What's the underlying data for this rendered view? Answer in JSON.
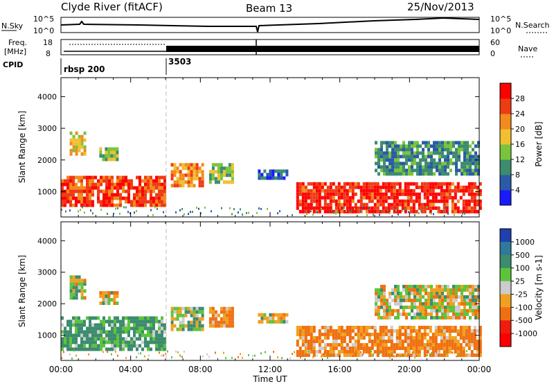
{
  "header": {
    "station": "Clyde River (fitACF)",
    "beam": "Beam 13",
    "date": "25/Nov/2013"
  },
  "meta_panels": {
    "nsky_label": "N.Sky",
    "nsearch_label": "N.Search",
    "freq_label_line1": "Freq.",
    "freq_label_line2": "[MHz]",
    "nave_label": "Nave",
    "cpid_label": "CPID",
    "nsky_ticks": [
      "10^5",
      "10^0"
    ],
    "nsearch_ticks": [
      "10^5",
      "10^0"
    ],
    "freq_ticks": [
      "18",
      "8"
    ],
    "nave_ticks": [
      "60",
      "0"
    ],
    "cpid_segments": [
      {
        "label": "rbsp 200",
        "start_hour": 0
      },
      {
        "label": "3503",
        "start_hour": 6
      }
    ]
  },
  "chart_data": [
    {
      "type": "heatmap",
      "title": "",
      "xlabel": "Time UT",
      "ylabel": "Slant Range [km]",
      "xlim": [
        0,
        24
      ],
      "ylim": [
        200,
        4600
      ],
      "x_ticks": [
        "00:00",
        "04:00",
        "08:00",
        "12:00",
        "16:00",
        "20:00",
        "00:00"
      ],
      "y_ticks": [
        "1000",
        "2000",
        "3000",
        "4000"
      ],
      "colorbar": {
        "label": "Power [dB]",
        "ticks": [
          "4",
          "8",
          "12",
          "16",
          "20",
          "24",
          "28"
        ],
        "colors": [
          "#1a1aff",
          "#2a5aa8",
          "#3c8c6e",
          "#7ac43c",
          "#f0c030",
          "#f28a1c",
          "#ef3b14",
          "#ff0000"
        ]
      },
      "regions": [
        {
          "t0": 0.0,
          "t1": 5.9,
          "r0": 600,
          "r1": 1500,
          "value": 26
        },
        {
          "t0": 0.5,
          "t1": 1.3,
          "r0": 2200,
          "r1": 2900,
          "value": 18
        },
        {
          "t0": 2.2,
          "t1": 3.2,
          "r0": 2000,
          "r1": 2400,
          "value": 14
        },
        {
          "t0": 6.3,
          "t1": 8.1,
          "r0": 1200,
          "r1": 1900,
          "value": 22
        },
        {
          "t0": 8.5,
          "t1": 9.8,
          "r0": 1300,
          "r1": 1900,
          "value": 14
        },
        {
          "t0": 11.3,
          "t1": 13.0,
          "r0": 1400,
          "r1": 1700,
          "value": 6
        },
        {
          "t0": 13.5,
          "t1": 24.0,
          "r0": 400,
          "r1": 1300,
          "value": 28
        },
        {
          "t0": 18.0,
          "t1": 24.0,
          "r0": 1600,
          "r1": 2600,
          "value": 10
        }
      ]
    },
    {
      "type": "heatmap",
      "title": "",
      "xlabel": "Time UT",
      "ylabel": "Slant Range [km]",
      "xlim": [
        0,
        24
      ],
      "ylim": [
        200,
        4600
      ],
      "x_ticks": [
        "00:00",
        "04:00",
        "08:00",
        "12:00",
        "16:00",
        "20:00",
        "00:00"
      ],
      "y_ticks": [
        "1000",
        "2000",
        "3000",
        "4000"
      ],
      "colorbar": {
        "label": "Velocity [m s-1]",
        "ticks": [
          "1000",
          "500",
          "100",
          "25",
          "-25",
          "-100",
          "-500",
          "-1000"
        ],
        "colors": [
          "#2040b0",
          "#2f7a9a",
          "#3c8c6e",
          "#5cc43a",
          "#cccccc",
          "#f0a020",
          "#f07010",
          "#ef1c10",
          "#ff0000"
        ]
      },
      "regions": [
        {
          "t0": 0.0,
          "t1": 5.9,
          "r0": 500,
          "r1": 1600,
          "value": 150
        },
        {
          "t0": 0.5,
          "t1": 1.3,
          "r0": 2200,
          "r1": 2900,
          "value": 0
        },
        {
          "t0": 2.2,
          "t1": 3.2,
          "r0": 2000,
          "r1": 2400,
          "value": 0
        },
        {
          "t0": 6.3,
          "t1": 8.1,
          "r0": 1200,
          "r1": 1900,
          "value": 50
        },
        {
          "t0": 8.5,
          "t1": 9.8,
          "r0": 1300,
          "r1": 1900,
          "value": -150
        },
        {
          "t0": 11.3,
          "t1": 13.0,
          "r0": 1400,
          "r1": 1700,
          "value": 0
        },
        {
          "t0": 13.5,
          "t1": 24.0,
          "r0": 400,
          "r1": 1300,
          "value": -150
        },
        {
          "t0": 18.0,
          "t1": 24.0,
          "r0": 1600,
          "r1": 2600,
          "value": 0
        }
      ]
    }
  ]
}
